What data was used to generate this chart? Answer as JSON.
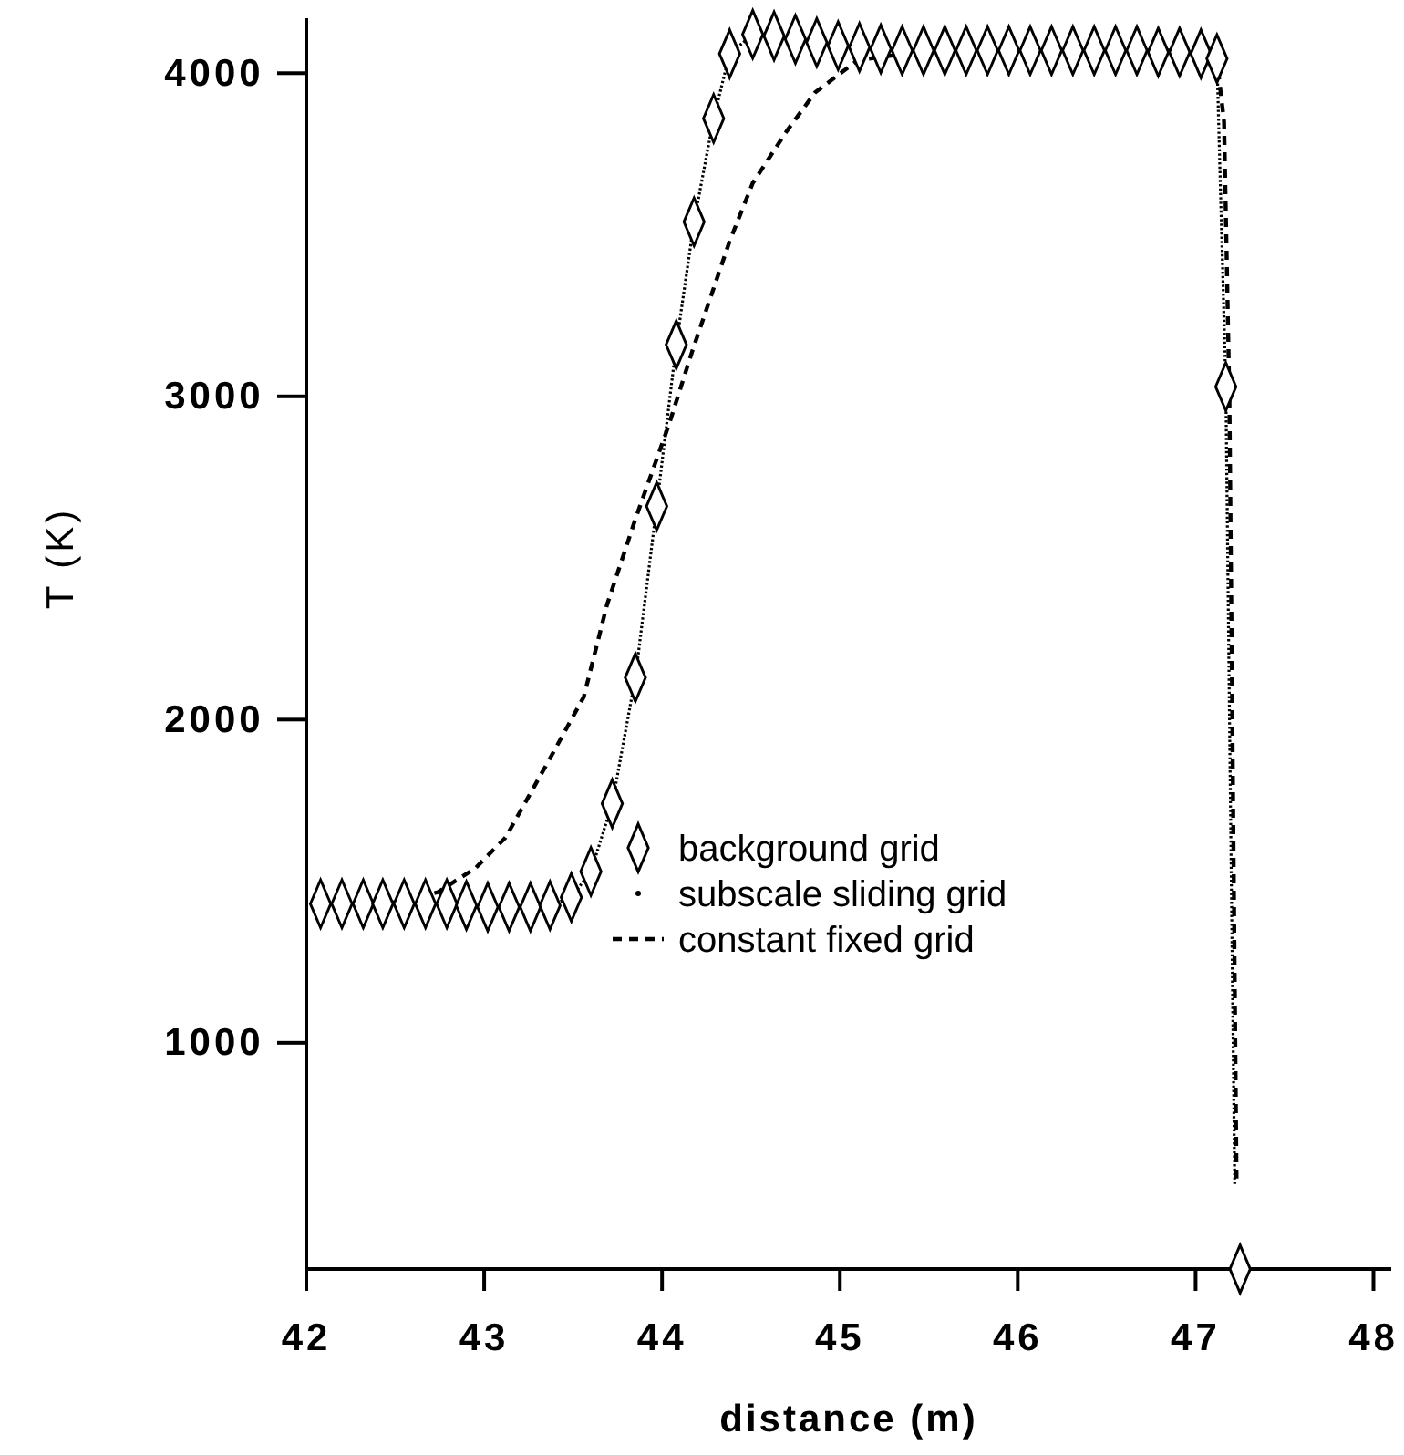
{
  "chart_data": {
    "type": "line",
    "xlabel": "distance (m)",
    "ylabel": "T (K)",
    "xlim": [
      42,
      48.1
    ],
    "xticks": [
      42,
      43,
      44,
      45,
      46,
      47,
      48
    ],
    "ylim": [
      300,
      4170
    ],
    "yticks": [
      1000,
      2000,
      3000,
      4000
    ],
    "grid": false,
    "legend": "bottom",
    "series": [
      {
        "name": "background grid",
        "type": "scatter",
        "marker": "diamond",
        "color": "#000000",
        "x": [
          42.08,
          42.2,
          42.32,
          42.43,
          42.55,
          42.67,
          42.79,
          42.9,
          43.02,
          43.14,
          43.26,
          43.37,
          43.49,
          43.6,
          43.72,
          43.85,
          43.97,
          44.08,
          44.18,
          44.29,
          44.38,
          44.51,
          44.63,
          44.75,
          44.87,
          44.99,
          45.11,
          45.23,
          45.35,
          45.47,
          45.59,
          45.71,
          45.83,
          45.95,
          46.07,
          46.19,
          46.31,
          46.43,
          46.55,
          46.67,
          46.79,
          46.91,
          47.03,
          47.12,
          47.17,
          47.25
        ],
        "values": [
          1430,
          1430,
          1430,
          1430,
          1430,
          1430,
          1430,
          1425,
          1420,
          1420,
          1420,
          1425,
          1450,
          1530,
          1740,
          2130,
          2660,
          3160,
          3540,
          3860,
          4060,
          4120,
          4115,
          4105,
          4095,
          4085,
          4080,
          4075,
          4070,
          4070,
          4070,
          4070,
          4070,
          4070,
          4070,
          4070,
          4070,
          4070,
          4070,
          4070,
          4065,
          4065,
          4060,
          4045,
          3030,
          300
        ]
      },
      {
        "name": "subscale sliding grid",
        "type": "line",
        "line_style": "dotted",
        "marker": "none",
        "color": "#000000",
        "x": [
          42.08,
          42.2,
          42.32,
          42.43,
          42.55,
          42.67,
          42.79,
          42.9,
          43.02,
          43.14,
          43.26,
          43.37,
          43.49,
          43.6,
          43.72,
          43.85,
          43.97,
          44.08,
          44.18,
          44.29,
          44.38,
          44.51,
          44.63,
          44.75,
          44.87,
          44.99,
          45.11,
          45.23,
          45.35,
          45.47,
          45.59,
          45.71,
          45.83,
          45.95,
          46.07,
          46.19,
          46.31,
          46.43,
          46.55,
          46.67,
          46.79,
          46.91,
          47.03,
          47.12,
          47.17,
          47.22
        ],
        "values": [
          1430,
          1430,
          1430,
          1430,
          1430,
          1430,
          1430,
          1425,
          1420,
          1420,
          1420,
          1425,
          1450,
          1530,
          1740,
          2130,
          2660,
          3160,
          3540,
          3860,
          4060,
          4120,
          4115,
          4105,
          4095,
          4085,
          4080,
          4075,
          4070,
          4070,
          4070,
          4070,
          4070,
          4070,
          4070,
          4070,
          4070,
          4070,
          4070,
          4070,
          4065,
          4065,
          4060,
          4045,
          3030,
          560
        ]
      },
      {
        "name": "constant fixed grid",
        "type": "line",
        "line_style": "dashed",
        "marker": "none",
        "color": "#000000",
        "x": [
          42.08,
          42.5,
          42.74,
          42.95,
          43.12,
          43.35,
          43.56,
          43.69,
          43.85,
          44.04,
          44.17,
          44.38,
          44.51,
          44.7,
          44.86,
          45.1,
          45.5,
          46.0,
          46.5,
          47.0,
          47.12,
          47.16,
          47.19,
          47.23
        ],
        "values": [
          1430,
          1435,
          1466,
          1540,
          1635,
          1860,
          2070,
          2354,
          2620,
          2915,
          3140,
          3480,
          3660,
          3820,
          3940,
          4040,
          4070,
          4070,
          4070,
          4070,
          4040,
          3850,
          3000,
          580
        ]
      }
    ]
  }
}
